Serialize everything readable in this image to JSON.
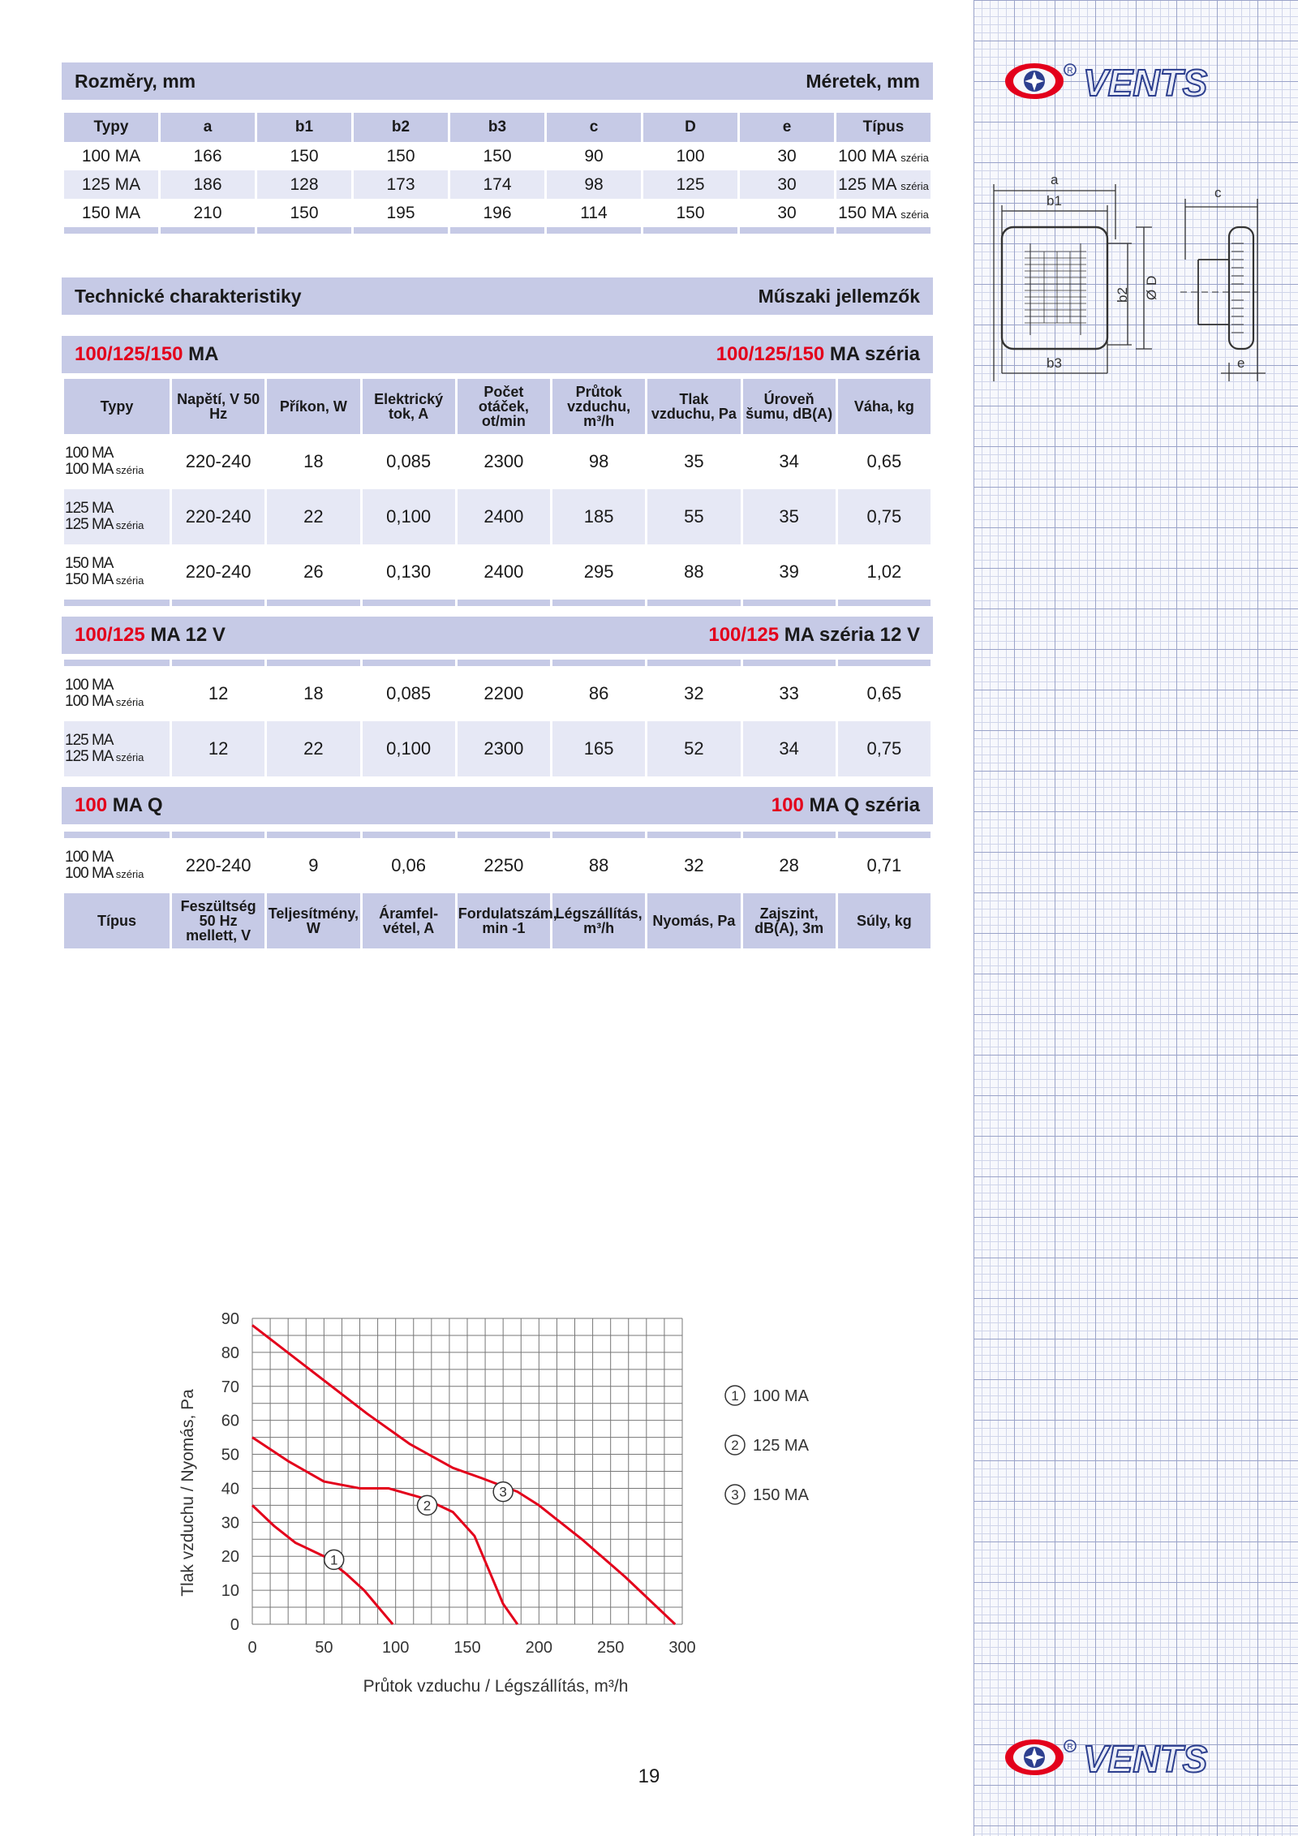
{
  "brand": "VENTS",
  "page_number": "19",
  "dimensions": {
    "title_left": "Rozměry, mm",
    "title_right": "Méretek, mm",
    "headers": [
      "Typy",
      "a",
      "b1",
      "b2",
      "b3",
      "c",
      "D",
      "e",
      "Típus"
    ],
    "rows": [
      {
        "type": "100 MA",
        "a": "166",
        "b1": "150",
        "b2": "150",
        "b3": "150",
        "c": "90",
        "D": "100",
        "e": "30",
        "tipus": "100 MA",
        "suffix": "széria"
      },
      {
        "type": "125 MA",
        "a": "186",
        "b1": "128",
        "b2": "173",
        "b3": "174",
        "c": "98",
        "D": "125",
        "e": "30",
        "tipus": "125 MA",
        "suffix": "széria"
      },
      {
        "type": "150 MA",
        "a": "210",
        "b1": "150",
        "b2": "195",
        "b3": "196",
        "c": "114",
        "D": "150",
        "e": "30",
        "tipus": "150 MA",
        "suffix": "széria"
      }
    ]
  },
  "technical": {
    "title_left": "Technické charakteristiky",
    "title_right": "Műszaki jellemzők",
    "section1": {
      "left_red": "100/125/150",
      "left_black": "MA",
      "right_red": "100/125/150",
      "right_black": "MA széria"
    },
    "section2": {
      "left_red": "100/125",
      "left_black": "MA 12 V",
      "right_red": "100/125",
      "right_black": "MA széria 12 V"
    },
    "section3": {
      "left_red": "100",
      "left_black": "MA Q",
      "right_red": "100",
      "right_black": "MA Q széria"
    },
    "headers_cz": [
      "Typy",
      "Napětí, V 50 Hz",
      "Příkon, W",
      "Elektrický tok, A",
      "Počet otáček, ot/min",
      "Průtok vzduchu, m³/h",
      "Tlak vzduchu, Pa",
      "Úroveň šumu, dB(A)",
      "Váha, kg"
    ],
    "headers_hu": [
      "Típus",
      "Feszültség 50 Hz mellett, V",
      "Teljesítmény, W",
      "Áramfel-vétel, A",
      "Fordulatszám, min -1",
      "Légszállítás, m³/h",
      "Nyomás, Pa",
      "Zajszint, dB(A), 3m",
      "Súly, kg"
    ],
    "rows1": [
      {
        "t1": "100 MA",
        "t2": "100 MA",
        "s": "széria",
        "v": "220-240",
        "w": "18",
        "a": "0,085",
        "rpm": "2300",
        "q": "98",
        "p": "35",
        "db": "34",
        "kg": "0,65"
      },
      {
        "t1": "125 MA",
        "t2": "125 MA",
        "s": "széria",
        "v": "220-240",
        "w": "22",
        "a": "0,100",
        "rpm": "2400",
        "q": "185",
        "p": "55",
        "db": "35",
        "kg": "0,75"
      },
      {
        "t1": "150 MA",
        "t2": "150 MA",
        "s": "széria",
        "v": "220-240",
        "w": "26",
        "a": "0,130",
        "rpm": "2400",
        "q": "295",
        "p": "88",
        "db": "39",
        "kg": "1,02"
      }
    ],
    "rows2": [
      {
        "t1": "100 MA",
        "t2": "100 MA",
        "s": "széria",
        "v": "12",
        "w": "18",
        "a": "0,085",
        "rpm": "2200",
        "q": "86",
        "p": "32",
        "db": "33",
        "kg": "0,65"
      },
      {
        "t1": "125 MA",
        "t2": "125 MA",
        "s": "széria",
        "v": "12",
        "w": "22",
        "a": "0,100",
        "rpm": "2300",
        "q": "165",
        "p": "52",
        "db": "34",
        "kg": "0,75"
      }
    ],
    "rows3": [
      {
        "t1": "100 MA",
        "t2": "100 MA",
        "s": "széria",
        "v": "220-240",
        "w": "9",
        "a": "0,06",
        "rpm": "2250",
        "q": "88",
        "p": "32",
        "db": "28",
        "kg": "0,71"
      }
    ]
  },
  "drawing_labels": {
    "a": "a",
    "b1": "b1",
    "b2": "b2",
    "b3": "b3",
    "c": "c",
    "d": "Ø D",
    "e": "e"
  },
  "chart_data": {
    "type": "line",
    "xlabel": "Průtok vzduchu / Légszállítás, m³/h",
    "ylabel": "Tlak vzduchu / Nyomás, Pa",
    "xlim": [
      0,
      300
    ],
    "ylim": [
      0,
      90
    ],
    "xticks": [
      "0",
      "50",
      "100",
      "150",
      "200",
      "250",
      "300"
    ],
    "yticks": [
      "0",
      "10",
      "20",
      "30",
      "40",
      "50",
      "60",
      "70",
      "80",
      "90"
    ],
    "grid": true,
    "series": [
      {
        "name": "100 MA",
        "marker": "1",
        "marker_at": [
          57,
          19
        ],
        "points": [
          [
            0,
            35
          ],
          [
            15,
            29
          ],
          [
            30,
            24
          ],
          [
            50,
            20
          ],
          [
            65,
            15
          ],
          [
            78,
            10
          ],
          [
            90,
            4
          ],
          [
            98,
            0
          ]
        ]
      },
      {
        "name": "125 MA",
        "marker": "2",
        "marker_at": [
          122,
          35
        ],
        "points": [
          [
            0,
            55
          ],
          [
            25,
            48
          ],
          [
            50,
            42
          ],
          [
            75,
            40
          ],
          [
            95,
            40
          ],
          [
            120,
            37
          ],
          [
            140,
            33
          ],
          [
            155,
            26
          ],
          [
            165,
            16
          ],
          [
            175,
            6
          ],
          [
            185,
            0
          ]
        ]
      },
      {
        "name": "150 MA",
        "marker": "3",
        "marker_at": [
          175,
          39
        ],
        "points": [
          [
            0,
            88
          ],
          [
            40,
            75
          ],
          [
            80,
            62
          ],
          [
            110,
            53
          ],
          [
            140,
            46
          ],
          [
            160,
            43
          ],
          [
            185,
            39
          ],
          [
            200,
            35
          ],
          [
            230,
            25
          ],
          [
            260,
            14
          ],
          [
            295,
            0
          ]
        ]
      }
    ]
  }
}
